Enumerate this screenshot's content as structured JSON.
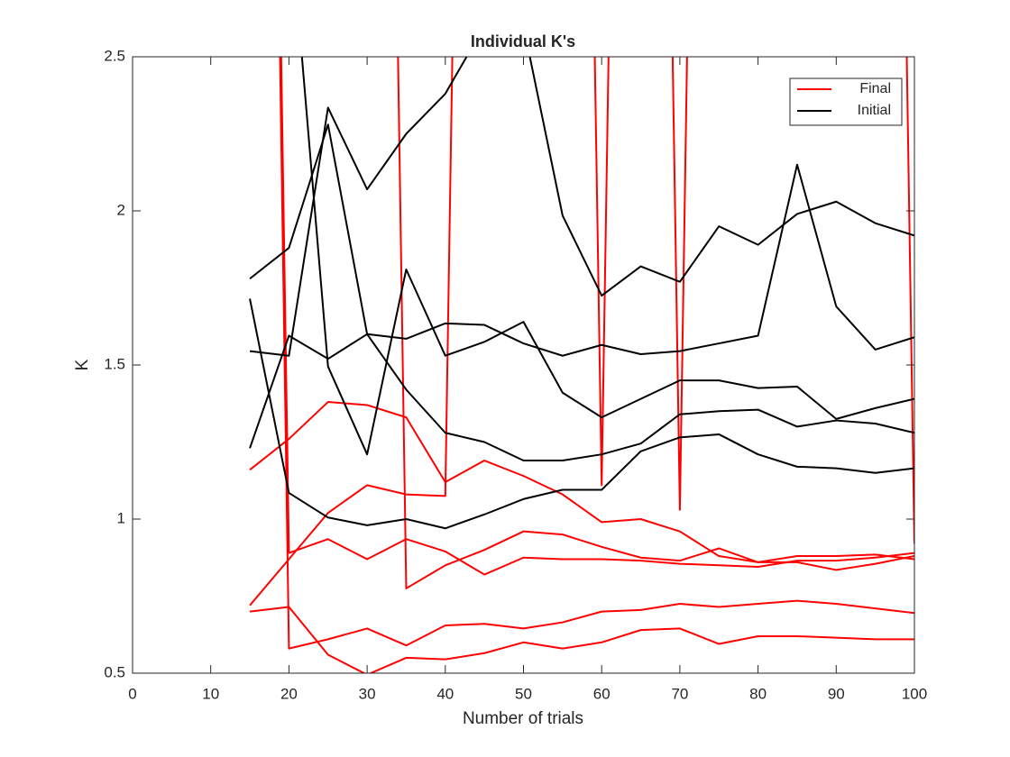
{
  "chart_data": {
    "type": "line",
    "title": "Individual K's",
    "xlabel": "Number of trials",
    "ylabel": "K",
    "x": [
      15,
      20,
      25,
      30,
      35,
      40,
      45,
      50,
      55,
      60,
      65,
      70,
      75,
      80,
      85,
      90,
      95,
      100
    ],
    "series": [
      {
        "name": "Final",
        "color": "#ff0000",
        "values": [
          [
            1.16,
            1.26,
            1.38,
            1.37,
            1.33,
            1.12,
            1.19,
            1.14,
            1.08,
            0.99,
            1.0,
            0.96,
            0.88,
            0.86,
            0.88,
            0.88,
            0.885,
            0.87
          ],
          [
            0.72,
            0.87,
            1.02,
            1.11,
            1.08,
            1.075,
            9,
            9,
            9,
            1.11,
            9,
            1.03,
            9,
            9,
            9,
            9,
            9,
            0.92
          ],
          [
            0.7,
            0.715,
            0.56,
            0.495,
            0.55,
            0.545,
            0.565,
            0.6,
            0.58,
            0.6,
            0.64,
            0.645,
            0.595,
            0.62,
            0.62,
            0.615,
            0.61,
            0.61
          ],
          [
            9,
            0.58,
            0.61,
            0.645,
            0.59,
            0.655,
            0.66,
            0.645,
            0.665,
            0.7,
            0.705,
            0.725,
            0.715,
            0.725,
            0.735,
            0.725,
            0.71,
            0.695
          ],
          [
            9,
            0.89,
            0.935,
            0.87,
            0.935,
            0.895,
            0.82,
            0.875,
            0.87,
            0.87,
            0.865,
            0.855,
            0.85,
            0.845,
            0.865,
            0.865,
            0.875,
            0.89
          ],
          [
            9,
            9,
            9,
            9,
            0.775,
            0.85,
            0.9,
            0.96,
            0.95,
            0.91,
            0.875,
            0.865,
            0.905,
            0.86,
            0.86,
            0.835,
            0.855,
            0.88
          ]
        ]
      },
      {
        "name": "Initial",
        "color": "#000000",
        "values": [
          [
            1.78,
            1.88,
            2.28,
            1.6,
            1.42,
            1.28,
            1.25,
            1.19,
            1.19,
            1.21,
            1.245,
            1.34,
            1.35,
            1.355,
            1.3,
            1.32,
            1.31,
            1.28
          ],
          [
            1.23,
            1.595,
            1.52,
            1.6,
            1.585,
            1.635,
            1.63,
            1.57,
            1.53,
            1.565,
            1.535,
            1.545,
            1.57,
            1.595,
            2.15,
            1.69,
            1.55,
            1.59
          ],
          [
            1.715,
            1.085,
            1.005,
            0.98,
            1.0,
            0.97,
            1.015,
            1.065,
            1.095,
            1.095,
            1.22,
            1.265,
            1.275,
            1.21,
            1.17,
            1.165,
            1.15,
            1.165
          ],
          [
            1.545,
            1.53,
            2.335,
            2.07,
            2.25,
            2.38,
            2.6,
            2.6,
            1.985,
            1.725,
            1.82,
            1.77,
            1.95,
            1.89,
            1.99,
            2.03,
            1.96,
            1.92
          ],
          [
            null,
            3,
            1.495,
            1.21,
            1.81,
            1.53,
            1.575,
            1.64,
            1.41,
            1.33,
            1.39,
            1.45,
            1.45,
            1.425,
            1.43,
            1.325,
            1.36,
            1.39
          ]
        ]
      }
    ],
    "xlim": [
      0,
      100
    ],
    "xticks": [
      0,
      10,
      20,
      30,
      40,
      50,
      60,
      70,
      80,
      90,
      100
    ],
    "ylim": [
      0.5,
      2.5
    ],
    "yticks": [
      0.5,
      1,
      1.5,
      2,
      2.5
    ],
    "legend": "northeast"
  }
}
